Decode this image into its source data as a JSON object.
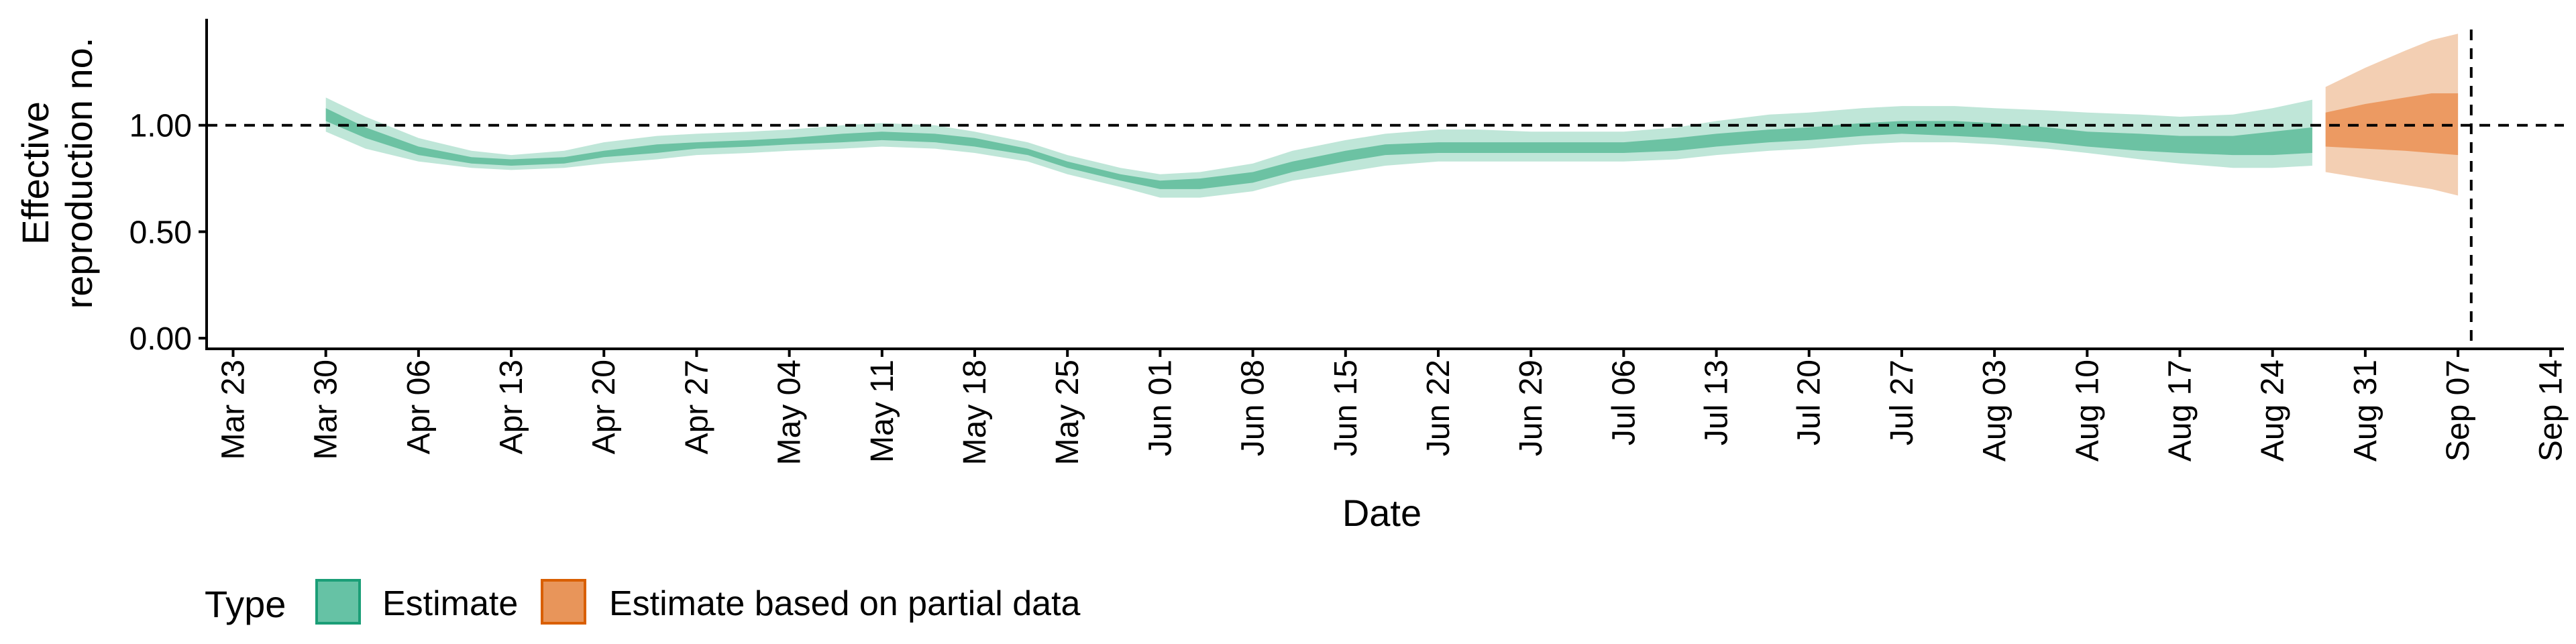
{
  "chart_data": {
    "type": "area",
    "ylabel_lines": [
      "Effective",
      "reproduction no."
    ],
    "xlabel": "Date",
    "ylim": [
      -0.05,
      1.5
    ],
    "yticks": [
      0.0,
      0.5,
      1.0
    ],
    "ytick_labels": [
      "0.00",
      "0.50",
      "1.00"
    ],
    "xrange": [
      "2020-03-21",
      "2020-09-15"
    ],
    "xtick_dates": [
      "2020-03-23",
      "2020-03-30",
      "2020-04-06",
      "2020-04-13",
      "2020-04-20",
      "2020-04-27",
      "2020-05-04",
      "2020-05-11",
      "2020-05-18",
      "2020-05-25",
      "2020-06-01",
      "2020-06-08",
      "2020-06-15",
      "2020-06-22",
      "2020-06-29",
      "2020-07-06",
      "2020-07-13",
      "2020-07-20",
      "2020-07-27",
      "2020-08-03",
      "2020-08-10",
      "2020-08-17",
      "2020-08-24",
      "2020-08-31",
      "2020-09-07",
      "2020-09-14"
    ],
    "xtick_labels": [
      "Mar 23",
      "Mar 30",
      "Apr 06",
      "Apr 13",
      "Apr 20",
      "Apr 27",
      "May 04",
      "May 11",
      "May 18",
      "May 25",
      "Jun 01",
      "Jun 08",
      "Jun 15",
      "Jun 22",
      "Jun 29",
      "Jul 06",
      "Jul 13",
      "Jul 20",
      "Jul 27",
      "Aug 03",
      "Aug 10",
      "Aug 17",
      "Aug 24",
      "Aug 31",
      "Sep 07",
      "Sep 14"
    ],
    "reference_y": 1.0,
    "reference_date": "2020-09-08",
    "grid": false,
    "legend": {
      "title": "Type",
      "position": "bottom-left",
      "entries": [
        {
          "label": "Estimate",
          "fill": "#66c2a5",
          "border": "#1b9e77"
        },
        {
          "label": "Estimate based on partial data",
          "fill": "#e8955a",
          "border": "#d95f02"
        }
      ]
    },
    "series": [
      {
        "name": "Estimate",
        "color_outer": "#bfe6d8",
        "color_inner": "#6cc2a3",
        "x": [
          "2020-03-30",
          "2020-04-02",
          "2020-04-06",
          "2020-04-10",
          "2020-04-13",
          "2020-04-17",
          "2020-04-20",
          "2020-04-24",
          "2020-04-27",
          "2020-05-01",
          "2020-05-04",
          "2020-05-08",
          "2020-05-11",
          "2020-05-15",
          "2020-05-18",
          "2020-05-22",
          "2020-05-25",
          "2020-05-29",
          "2020-06-01",
          "2020-06-04",
          "2020-06-08",
          "2020-06-11",
          "2020-06-15",
          "2020-06-18",
          "2020-06-22",
          "2020-06-25",
          "2020-06-29",
          "2020-07-02",
          "2020-07-06",
          "2020-07-10",
          "2020-07-13",
          "2020-07-17",
          "2020-07-20",
          "2020-07-24",
          "2020-07-27",
          "2020-07-31",
          "2020-08-03",
          "2020-08-07",
          "2020-08-10",
          "2020-08-14",
          "2020-08-17",
          "2020-08-21",
          "2020-08-24",
          "2020-08-27"
        ],
        "lower90": [
          0.97,
          0.89,
          0.83,
          0.8,
          0.79,
          0.8,
          0.82,
          0.84,
          0.86,
          0.87,
          0.88,
          0.89,
          0.9,
          0.89,
          0.87,
          0.83,
          0.77,
          0.71,
          0.66,
          0.66,
          0.69,
          0.74,
          0.78,
          0.81,
          0.83,
          0.83,
          0.83,
          0.83,
          0.83,
          0.84,
          0.86,
          0.88,
          0.89,
          0.91,
          0.92,
          0.92,
          0.91,
          0.89,
          0.87,
          0.84,
          0.82,
          0.8,
          0.8,
          0.81
        ],
        "upper90": [
          1.13,
          1.04,
          0.94,
          0.88,
          0.86,
          0.88,
          0.92,
          0.95,
          0.96,
          0.97,
          0.98,
          1.0,
          1.01,
          1.0,
          0.97,
          0.92,
          0.86,
          0.8,
          0.77,
          0.78,
          0.82,
          0.88,
          0.93,
          0.96,
          0.98,
          0.98,
          0.97,
          0.97,
          0.97,
          0.99,
          1.02,
          1.05,
          1.06,
          1.08,
          1.09,
          1.09,
          1.08,
          1.07,
          1.06,
          1.05,
          1.04,
          1.05,
          1.08,
          1.12
        ],
        "lower50": [
          1.02,
          0.94,
          0.86,
          0.82,
          0.81,
          0.82,
          0.85,
          0.87,
          0.89,
          0.9,
          0.91,
          0.92,
          0.93,
          0.92,
          0.9,
          0.86,
          0.8,
          0.74,
          0.7,
          0.7,
          0.73,
          0.78,
          0.83,
          0.86,
          0.87,
          0.87,
          0.87,
          0.87,
          0.87,
          0.88,
          0.9,
          0.92,
          0.93,
          0.95,
          0.96,
          0.95,
          0.94,
          0.92,
          0.9,
          0.88,
          0.87,
          0.86,
          0.86,
          0.87
        ],
        "upper50": [
          1.08,
          0.99,
          0.9,
          0.85,
          0.84,
          0.85,
          0.88,
          0.91,
          0.92,
          0.93,
          0.94,
          0.96,
          0.97,
          0.96,
          0.94,
          0.89,
          0.83,
          0.77,
          0.74,
          0.75,
          0.78,
          0.83,
          0.88,
          0.91,
          0.92,
          0.92,
          0.92,
          0.92,
          0.92,
          0.94,
          0.96,
          0.98,
          0.99,
          1.01,
          1.02,
          1.02,
          1.01,
          0.99,
          0.97,
          0.96,
          0.95,
          0.95,
          0.97,
          0.99
        ]
      },
      {
        "name": "Estimate based on partial data",
        "color_outer": "#f3cfb3",
        "color_inner": "#ec9a62",
        "x": [
          "2020-08-28",
          "2020-08-31",
          "2020-09-03",
          "2020-09-05",
          "2020-09-07"
        ],
        "lower90": [
          0.78,
          0.75,
          0.72,
          0.7,
          0.67
        ],
        "upper90": [
          1.18,
          1.27,
          1.35,
          1.4,
          1.43
        ],
        "lower50": [
          0.9,
          0.89,
          0.88,
          0.87,
          0.86
        ],
        "upper50": [
          1.06,
          1.1,
          1.13,
          1.15,
          1.15
        ]
      }
    ]
  }
}
